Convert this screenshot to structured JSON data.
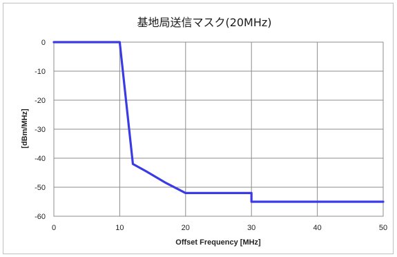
{
  "chart_data": {
    "type": "line",
    "title": "基地局送信マスク(20MHz)",
    "xlabel": "Offset Frequency [MHz]",
    "ylabel": "[dBm/MHz]",
    "xlim": [
      0,
      50
    ],
    "ylim": [
      -60,
      0
    ],
    "x_ticks": [
      0,
      10,
      20,
      30,
      40,
      50
    ],
    "y_ticks": [
      0,
      -10,
      -20,
      -30,
      -40,
      -50,
      -60
    ],
    "grid": true,
    "legend": "none",
    "series": [
      {
        "color": "#3b3be6",
        "points": [
          {
            "x": 0,
            "y": 0
          },
          {
            "x": 10,
            "y": 0
          },
          {
            "x": 12,
            "y": -42
          },
          {
            "x": 14,
            "y": -44.5
          },
          {
            "x": 17,
            "y": -48.5
          },
          {
            "x": 20,
            "y": -52
          },
          {
            "x": 30,
            "y": -52
          },
          {
            "x": 30,
            "y": -55
          },
          {
            "x": 50,
            "y": -55
          }
        ]
      }
    ]
  }
}
